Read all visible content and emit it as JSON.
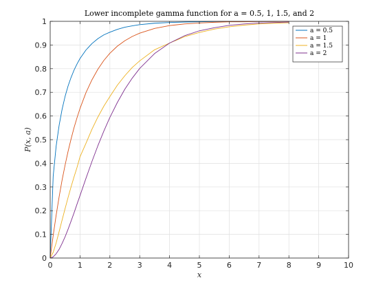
{
  "chart_data": {
    "type": "line",
    "title": "Lower incomplete gamma function for a = 0.5, 1, 1.5, and 2",
    "xlabel": "x",
    "ylabel": "P(x, a)",
    "xlim": [
      0,
      10
    ],
    "ylim": [
      0,
      1
    ],
    "xticks": [
      "0",
      "1",
      "2",
      "3",
      "4",
      "5",
      "6",
      "7",
      "8",
      "9",
      "10"
    ],
    "yticks": [
      "0",
      "0.1",
      "0.2",
      "0.3",
      "0.4",
      "0.5",
      "0.6",
      "0.7",
      "0.8",
      "0.9",
      "1"
    ],
    "grid": true,
    "legend_position": "top-right",
    "x": [
      0,
      0.1,
      0.2,
      0.3,
      0.4,
      0.5,
      0.6,
      0.7,
      0.8,
      0.9,
      1,
      1.2,
      1.4,
      1.6,
      1.8,
      2,
      2.25,
      2.5,
      2.75,
      3,
      3.5,
      4,
      4.5,
      5,
      5.5,
      6,
      6.5,
      7,
      7.5,
      8
    ],
    "series": [
      {
        "name": "a = 0.5",
        "color": "#0072bd",
        "values": [
          0,
          0.345,
          0.473,
          0.561,
          0.629,
          0.683,
          0.727,
          0.763,
          0.794,
          0.82,
          0.843,
          0.879,
          0.906,
          0.927,
          0.943,
          0.954,
          0.966,
          0.975,
          0.981,
          0.986,
          0.992,
          0.995,
          0.997,
          0.998,
          0.999,
          0.999,
          0.999,
          0.999,
          1.0,
          1.0
        ]
      },
      {
        "name": "a = 1",
        "color": "#d95319",
        "values": [
          0,
          0.095,
          0.181,
          0.259,
          0.33,
          0.393,
          0.451,
          0.503,
          0.551,
          0.593,
          0.632,
          0.699,
          0.753,
          0.798,
          0.835,
          0.865,
          0.895,
          0.918,
          0.936,
          0.95,
          0.97,
          0.982,
          0.989,
          0.993,
          0.996,
          0.998,
          0.998,
          0.999,
          0.999,
          1.0
        ]
      },
      {
        "name": "a = 1.5",
        "color": "#edb120",
        "values": [
          0,
          0.024,
          0.064,
          0.112,
          0.161,
          0.209,
          0.256,
          0.301,
          0.343,
          0.383,
          0.428,
          0.485,
          0.544,
          0.596,
          0.642,
          0.682,
          0.73,
          0.77,
          0.805,
          0.833,
          0.88,
          0.908,
          0.935,
          0.953,
          0.967,
          0.977,
          0.984,
          0.989,
          0.992,
          0.994
        ]
      },
      {
        "name": "a = 2",
        "color": "#7e2f8e",
        "values": [
          0,
          0.005,
          0.018,
          0.037,
          0.062,
          0.09,
          0.122,
          0.156,
          0.191,
          0.228,
          0.264,
          0.337,
          0.408,
          0.475,
          0.537,
          0.594,
          0.657,
          0.713,
          0.76,
          0.801,
          0.864,
          0.908,
          0.939,
          0.96,
          0.973,
          0.983,
          0.989,
          0.993,
          0.995,
          0.997
        ]
      }
    ]
  }
}
